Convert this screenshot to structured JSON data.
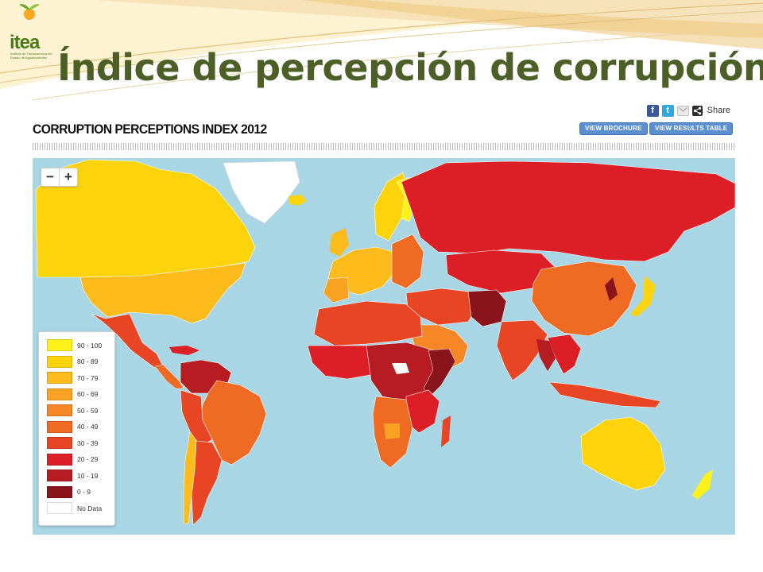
{
  "slide": {
    "title": "Índice de percepción de corrupción",
    "logo_text": "itea",
    "logo_subtext": "Instituto de Transparencia del Estado de Aguascalientes"
  },
  "map_page": {
    "heading": "CORRUPTION PERCEPTIONS INDEX 2012",
    "share": {
      "icons": [
        "facebook-icon",
        "twitter-icon",
        "mail-icon",
        "share-icon"
      ],
      "label": "Share"
    },
    "buttons": {
      "brochure": "VIEW BROCHURE",
      "results": "VIEW RESULTS TABLE"
    },
    "zoom": {
      "minus": "−",
      "plus": "+"
    },
    "ocean_color": "#a8d6e4",
    "legend": [
      {
        "label": "90 - 100",
        "color": "#fff21a"
      },
      {
        "label": "80 - 89",
        "color": "#fdd40c"
      },
      {
        "label": "70 - 79",
        "color": "#fdbb1c"
      },
      {
        "label": "60 - 69",
        "color": "#f9a224"
      },
      {
        "label": "50 - 59",
        "color": "#f58726"
      },
      {
        "label": "40 - 49",
        "color": "#ef6a23"
      },
      {
        "label": "30 - 39",
        "color": "#e74524"
      },
      {
        "label": "20 - 29",
        "color": "#dc1f26"
      },
      {
        "label": "10 - 19",
        "color": "#b71c22"
      },
      {
        "label": "0 - 9",
        "color": "#8a141b"
      },
      {
        "label": "No Data",
        "color": "#ffffff"
      }
    ]
  }
}
